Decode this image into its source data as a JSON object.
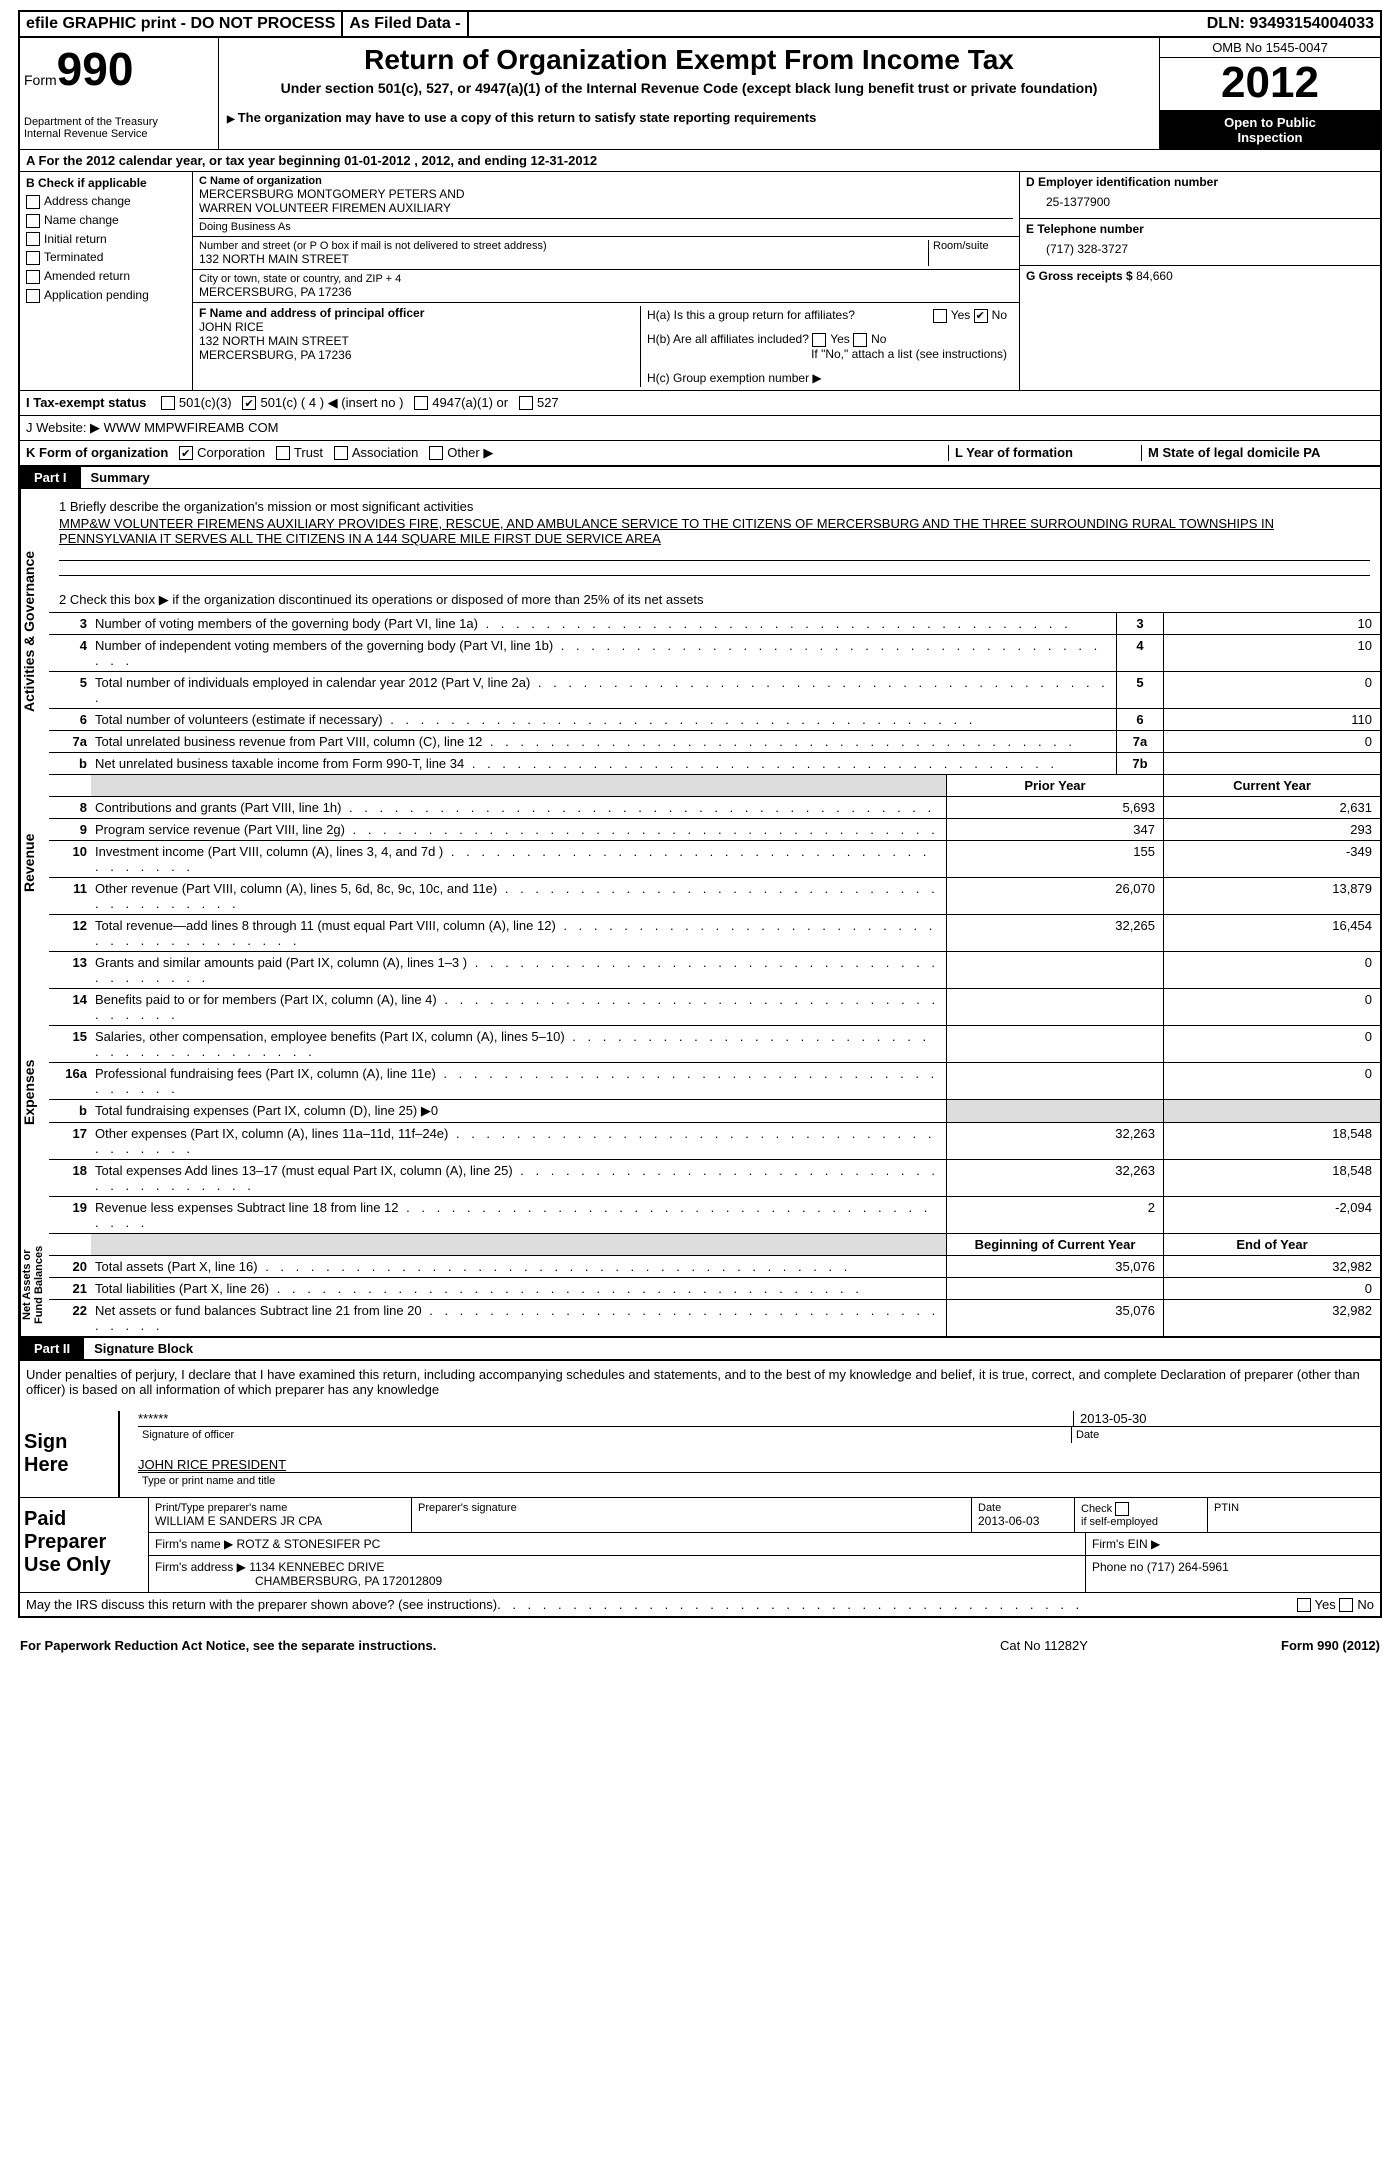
{
  "top": {
    "efile": "efile GRAPHIC print - DO NOT PROCESS",
    "asfiled": "As Filed Data -",
    "dln_label": "DLN:",
    "dln": "93493154004033"
  },
  "hdr": {
    "form": "Form",
    "num": "990",
    "dept1": "Department of the Treasury",
    "dept2": "Internal Revenue Service",
    "title": "Return of Organization Exempt From Income Tax",
    "sub": "Under section 501(c), 527, or 4947(a)(1) of the Internal Revenue Code (except black lung benefit trust or private foundation)",
    "note": "The organization may have to use a copy of this return to satisfy state reporting requirements",
    "omb": "OMB No 1545-0047",
    "year": "2012",
    "open1": "Open to Public",
    "open2": "Inspection"
  },
  "A": "A  For the 2012 calendar year, or tax year beginning 01-01-2012    , 2012, and ending 12-31-2012",
  "B": {
    "title": "B  Check if applicable",
    "opts": [
      "Address change",
      "Name change",
      "Initial return",
      "Terminated",
      "Amended return",
      "Application pending"
    ]
  },
  "C": {
    "lbl": "C Name of organization",
    "name1": "MERCERSBURG MONTGOMERY PETERS AND",
    "name2": "WARREN VOLUNTEER FIREMEN AUXILIARY",
    "dba": "Doing Business As",
    "addrlabel": "Number and street (or P O box if mail is not delivered to street address)",
    "room": "Room/suite",
    "addr": "132 NORTH MAIN STREET",
    "citylabel": "City or town, state or country, and ZIP + 4",
    "city": "MERCERSBURG, PA  17236"
  },
  "D": {
    "lbl": "D Employer identification number",
    "val": "25-1377900"
  },
  "E": {
    "lbl": "E Telephone number",
    "val": "(717) 328-3727"
  },
  "G": {
    "lbl": "G Gross receipts $",
    "val": "84,660"
  },
  "F": {
    "lbl": "F   Name and address of principal officer",
    "name": "JOHN RICE",
    "addr": "132 NORTH MAIN STREET",
    "city": "MERCERSBURG, PA  17236"
  },
  "H": {
    "a": "H(a)  Is this a group return for affiliates?",
    "b": "H(b)  Are all affiliates included?",
    "bnote": "If \"No,\" attach a list  (see instructions)",
    "c": "H(c)   Group exemption number ▶"
  },
  "I": "I   Tax-exempt status",
  "Iopts": [
    "501(c)(3)",
    "501(c) ( 4 ) ◀ (insert no )",
    "4947(a)(1) or",
    "527"
  ],
  "J": "J  Website: ▶   WWW MMPWFIREAMB COM",
  "K": {
    "lbl": "K Form of organization",
    "opts": [
      "Corporation",
      "Trust",
      "Association",
      "Other ▶"
    ],
    "L": "L Year of formation",
    "M": "M State of legal domicile  PA"
  },
  "parts": {
    "p1": "Part I",
    "p1t": "Summary",
    "p2": "Part II",
    "p2t": "Signature Block"
  },
  "mission": {
    "lead": "1     Briefly describe the organization's mission or most significant activities",
    "text": "MMP&W VOLUNTEER FIREMENS AUXILIARY PROVIDES FIRE, RESCUE, AND AMBULANCE SERVICE TO THE CITIZENS OF MERCERSBURG AND THE THREE SURROUNDING RURAL TOWNSHIPS IN PENNSYLVANIA  IT SERVES ALL THE CITIZENS IN A 144 SQUARE MILE FIRST DUE SERVICE AREA",
    "line2": "2     Check this box ▶    if the organization discontinued its operations or disposed of more than 25% of its net assets"
  },
  "gov": [
    {
      "n": "3",
      "t": "Number of voting members of the governing body (Part VI, line 1a)",
      "bn": "3",
      "v": "10"
    },
    {
      "n": "4",
      "t": "Number of independent voting members of the governing body (Part VI, line 1b)",
      "bn": "4",
      "v": "10"
    },
    {
      "n": "5",
      "t": "Total number of individuals employed in calendar year 2012 (Part V, line 2a)",
      "bn": "5",
      "v": "0"
    },
    {
      "n": "6",
      "t": "Total number of volunteers (estimate if necessary)",
      "bn": "6",
      "v": "110"
    },
    {
      "n": "7a",
      "t": "Total unrelated business revenue from Part VIII, column (C), line 12",
      "bn": "7a",
      "v": "0"
    },
    {
      "n": "b",
      "t": "Net unrelated business taxable income from Form 990-T, line 34",
      "bn": "7b",
      "v": ""
    }
  ],
  "revhdr": {
    "py": "Prior Year",
    "cy": "Current Year"
  },
  "rev": [
    {
      "n": "8",
      "t": "Contributions and grants (Part VIII, line 1h)",
      "p": "5,693",
      "c": "2,631"
    },
    {
      "n": "9",
      "t": "Program service revenue (Part VIII, line 2g)",
      "p": "347",
      "c": "293"
    },
    {
      "n": "10",
      "t": "Investment income (Part VIII, column (A), lines 3, 4, and 7d )",
      "p": "155",
      "c": "-349"
    },
    {
      "n": "11",
      "t": "Other revenue (Part VIII, column (A), lines 5, 6d, 8c, 9c, 10c, and 11e)",
      "p": "26,070",
      "c": "13,879"
    },
    {
      "n": "12",
      "t": "Total revenue—add lines 8 through 11 (must equal Part VIII, column (A), line 12)",
      "p": "32,265",
      "c": "16,454"
    }
  ],
  "exp": [
    {
      "n": "13",
      "t": "Grants and similar amounts paid (Part IX, column (A), lines 1–3 )",
      "p": "",
      "c": "0"
    },
    {
      "n": "14",
      "t": "Benefits paid to or for members (Part IX, column (A), line 4)",
      "p": "",
      "c": "0"
    },
    {
      "n": "15",
      "t": "Salaries, other compensation, employee benefits (Part IX, column (A), lines 5–10)",
      "p": "",
      "c": "0"
    },
    {
      "n": "16a",
      "t": "Professional fundraising fees (Part IX, column (A), line 11e)",
      "p": "",
      "c": "0"
    },
    {
      "n": "b",
      "t": "Total fundraising expenses (Part IX, column (D), line 25) ▶0",
      "p": "grey",
      "c": "grey"
    },
    {
      "n": "17",
      "t": "Other expenses (Part IX, column (A), lines 11a–11d, 11f–24e)",
      "p": "32,263",
      "c": "18,548"
    },
    {
      "n": "18",
      "t": "Total expenses  Add lines 13–17 (must equal Part IX, column (A), line 25)",
      "p": "32,263",
      "c": "18,548"
    },
    {
      "n": "19",
      "t": "Revenue less expenses  Subtract line 18 from line 12",
      "p": "2",
      "c": "-2,094"
    }
  ],
  "nahdr": {
    "b": "Beginning of Current Year",
    "e": "End of Year"
  },
  "na": [
    {
      "n": "20",
      "t": "Total assets (Part X, line 16)",
      "p": "35,076",
      "c": "32,982"
    },
    {
      "n": "21",
      "t": "Total liabilities (Part X, line 26)",
      "p": "",
      "c": "0"
    },
    {
      "n": "22",
      "t": "Net assets or fund balances  Subtract line 21 from line 20",
      "p": "35,076",
      "c": "32,982"
    }
  ],
  "sig": {
    "decl": "Under penalties of perjury, I declare that I have examined this return, including accompanying schedules and statements, and to the best of my knowledge and belief, it is true, correct, and complete  Declaration of preparer (other than officer) is based on all information of which preparer has any knowledge",
    "sign": "Sign Here",
    "stars": "******",
    "date": "2013-05-30",
    "sigof": "Signature of officer",
    "datel": "Date",
    "name": "JOHN RICE PRESIDENT",
    "namel": "Type or print name and title"
  },
  "prep": {
    "label": "Paid Preparer Use Only",
    "h1": "Print/Type preparer's name",
    "n1": "WILLIAM E SANDERS JR CPA",
    "h2": "Preparer's signature",
    "h3": "Date",
    "d3": "2013-06-03",
    "h4lbl": "Check",
    "h4": "if self-employed",
    "h5": "PTIN",
    "firm": "Firm's name  ▶  ROTZ & STONESIFER PC",
    "ein": "Firm's EIN ▶",
    "addr": "Firm's address ▶ 1134 KENNEBEC DRIVE",
    "addr2": "CHAMBERSBURG, PA  172012809",
    "phone": "Phone no  (717) 264-5961"
  },
  "discuss": "May the IRS discuss this return with the preparer shown above? (see instructions)",
  "footer": {
    "l": "For Paperwork Reduction Act Notice, see the separate instructions.",
    "m": "Cat No 11282Y",
    "r": "Form 990 (2012)"
  }
}
